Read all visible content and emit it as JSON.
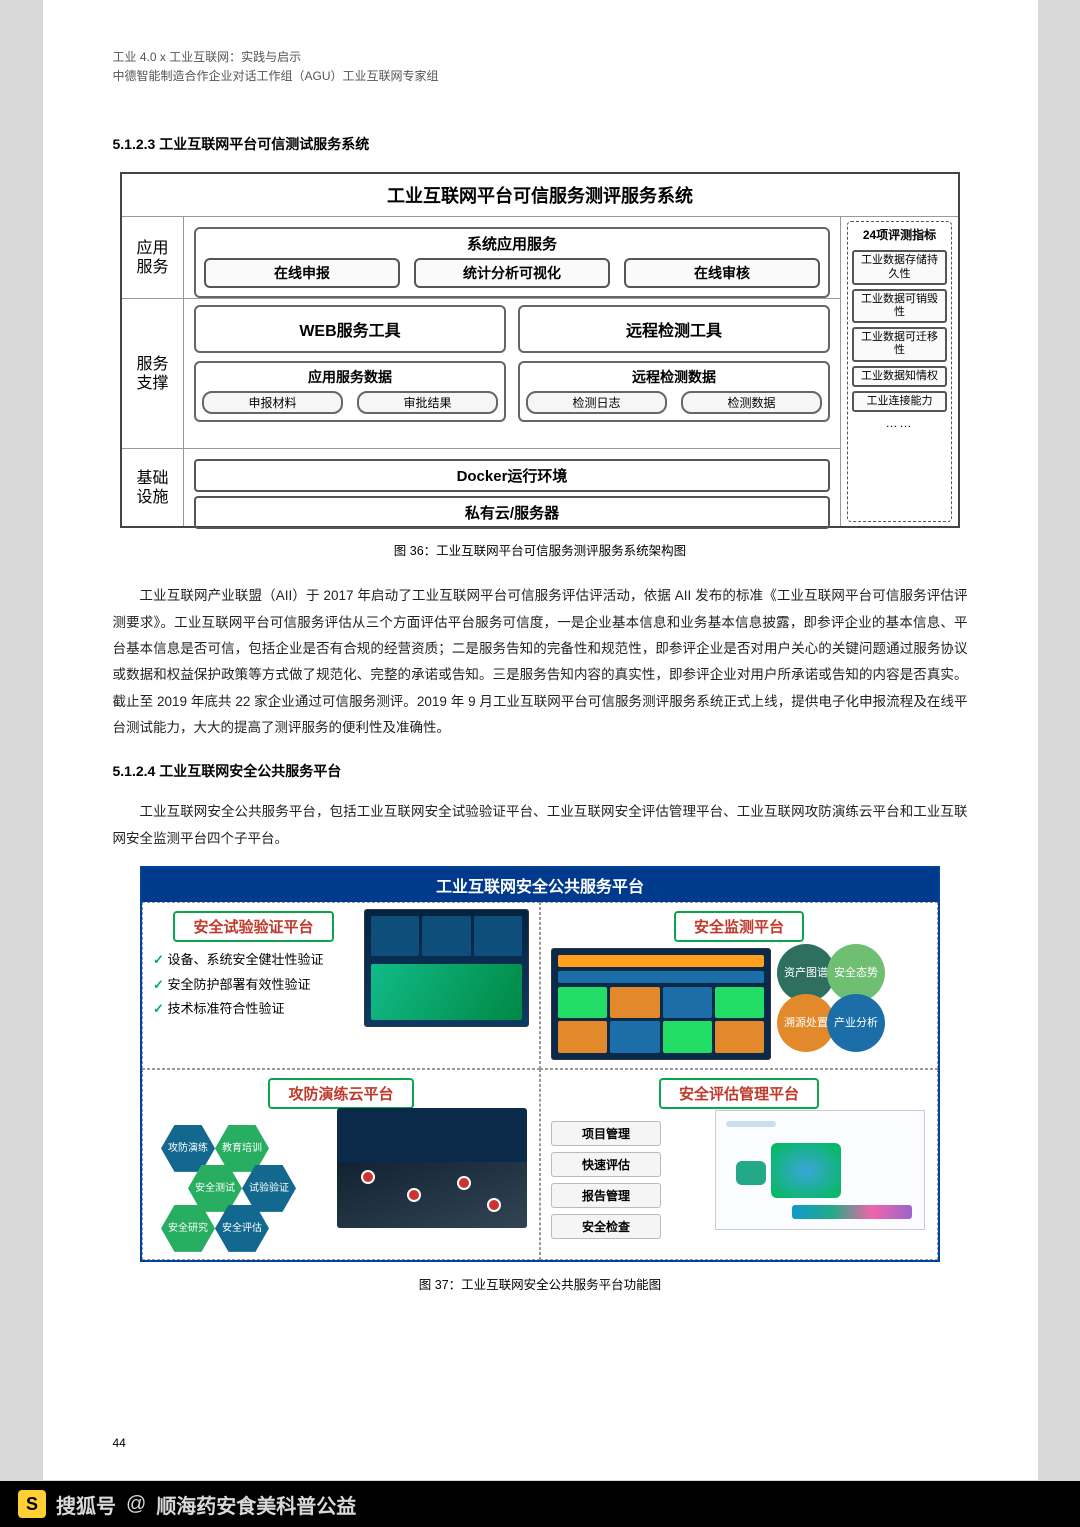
{
  "header": {
    "line1": "工业 4.0 x 工业互联网：实践与启示",
    "line2": "中德智能制造合作企业对话工作组（AGU）工业互联网专家组"
  },
  "section5123": {
    "title": "5.1.2.3 工业互联网平台可信测试服务系统"
  },
  "fig36": {
    "title": "工业互联网平台可信服务测评服务系统",
    "leftLabels": {
      "app": "应用\n服务",
      "support": "服务\n支撑",
      "infra": "基础\n设施"
    },
    "appGroup": {
      "title": "系统应用服务",
      "items": [
        "在线申报",
        "统计分析可视化",
        "在线审核"
      ]
    },
    "supportTop": {
      "left": "WEB服务工具",
      "right": "远程检测工具"
    },
    "supportBottom": {
      "left": {
        "title": "应用服务数据",
        "items": [
          "申报材料",
          "审批结果"
        ]
      },
      "right": {
        "title": "远程检测数据",
        "items": [
          "检测日志",
          "检测数据"
        ]
      }
    },
    "infra": {
      "docker": "Docker运行环境",
      "cloud": "私有云/服务器"
    },
    "rightCol": {
      "title": "24项评测指标",
      "items": [
        "工业数据存储持久性",
        "工业数据可销毁性",
        "工业数据可迁移性",
        "工业数据知情权",
        "工业连接能力"
      ],
      "more": "……"
    },
    "caption": "图 36：工业互联网平台可信服务测评服务系统架构图"
  },
  "para1": "工业互联网产业联盟（AII）于 2017 年启动了工业互联网平台可信服务评估评活动，依据 AII 发布的标准《工业互联网平台可信服务评估评测要求》。工业互联网平台可信服务评估从三个方面评估平台服务可信度，一是企业基本信息和业务基本信息披露，即参评企业的基本信息、平台基本信息是否可信，包括企业是否有合规的经营资质；二是服务告知的完备性和规范性，即参评企业是否对用户关心的关键问题通过服务协议或数据和权益保护政策等方式做了规范化、完整的承诺或告知。三是服务告知内容的真实性，即参评企业对用户所承诺或告知的内容是否真实。截止至 2019 年底共 22 家企业通过可信服务测评。2019 年 9 月工业互联网平台可信服务测评服务系统正式上线，提供电子化申报流程及在线平台测试能力，大大的提高了测评服务的便利性及准确性。",
  "section5124": {
    "title": "5.1.2.4 工业互联网安全公共服务平台"
  },
  "para2": "工业互联网安全公共服务平台，包括工业互联网安全试验验证平台、工业互联网安全评估管理平台、工业互联网攻防演练云平台和工业互联网安全监测平台四个子平台。",
  "fig37": {
    "title": "工业互联网安全公共服务平台",
    "tl": {
      "title": "安全试验验证平台",
      "items": [
        "设备、系统安全健壮性验证",
        "安全防护部署有效性验证",
        "技术标准符合性验证"
      ]
    },
    "tr": {
      "title": "安全监测平台",
      "circles": [
        "资产图谱",
        "安全态势",
        "溯源处置",
        "产业分析"
      ]
    },
    "bl": {
      "title": "攻防演练云平台",
      "hex": [
        "攻防演练",
        "教育培训",
        "安全测试",
        "试验验证",
        "安全研究",
        "安全评估"
      ]
    },
    "br": {
      "title": "安全评估管理平台",
      "buttons": [
        "项目管理",
        "快速评估",
        "报告管理",
        "安全检查"
      ]
    },
    "caption": "图 37：工业互联网安全公共服务平台功能图"
  },
  "pageNum": "44",
  "footer": {
    "site": "搜狐号",
    "at": "@",
    "name": "顺海药安食美科普公益"
  },
  "colors": {
    "navy": "#003a8c",
    "green": "#27ae60",
    "red": "#c0392b",
    "panel_border": "#0aa54d"
  }
}
